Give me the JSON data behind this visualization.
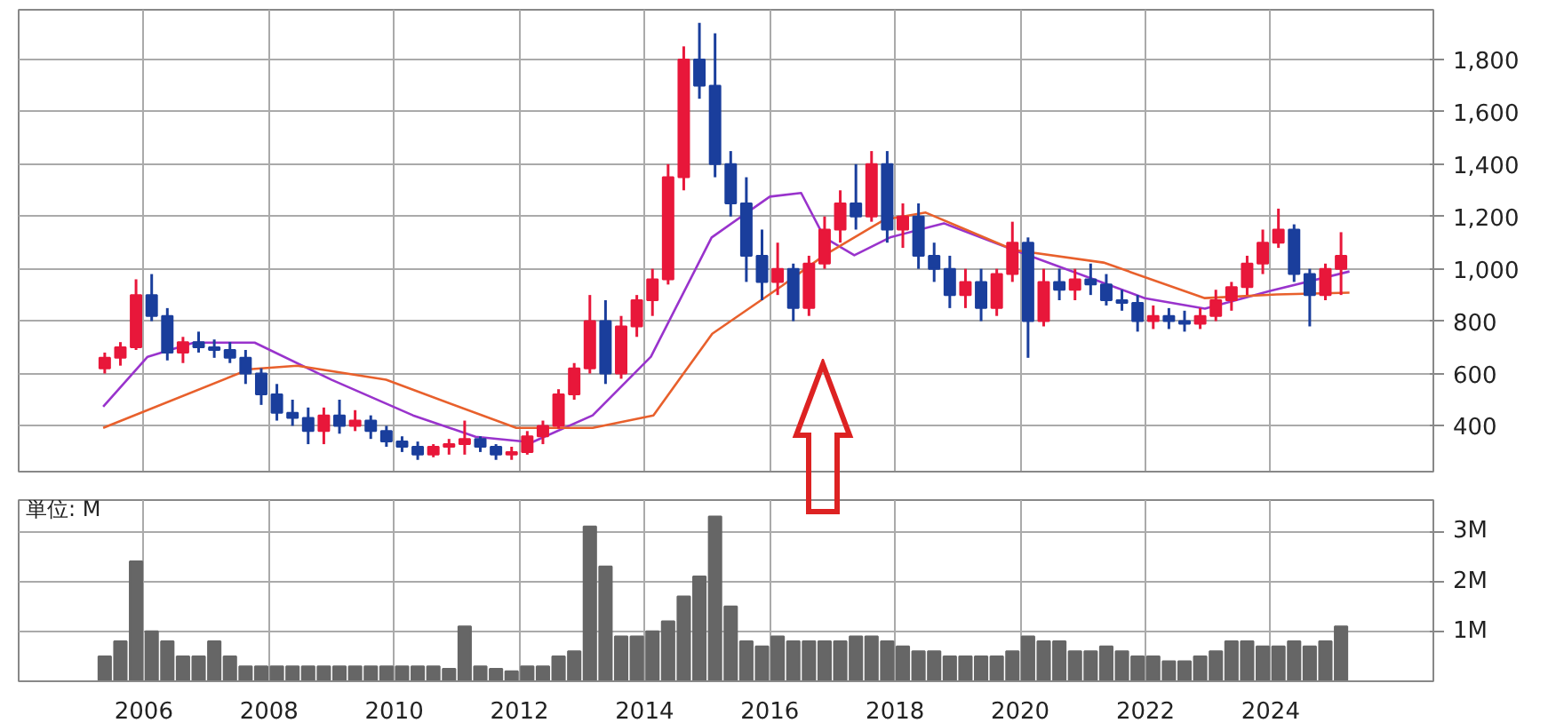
{
  "chart_data": [
    {
      "type": "candlestick",
      "x": [
        2005.375,
        2005.625,
        2005.875,
        2006.125,
        2006.375,
        2006.625,
        2006.875,
        2007.125,
        2007.375,
        2007.625,
        2007.875,
        2008.125,
        2008.375,
        2008.625,
        2008.875,
        2009.125,
        2009.375,
        2009.625,
        2009.875,
        2010.125,
        2010.375,
        2010.625,
        2010.875,
        2011.125,
        2011.375,
        2011.625,
        2011.875,
        2012.125,
        2012.375,
        2012.625,
        2012.875,
        2013.125,
        2013.375,
        2013.625,
        2013.875,
        2014.125,
        2014.375,
        2014.625,
        2014.875,
        2015.125,
        2015.375,
        2015.625,
        2015.875,
        2016.125,
        2016.375,
        2016.625,
        2016.875,
        2017.125,
        2017.375,
        2017.625,
        2017.875,
        2018.125,
        2018.375,
        2018.625,
        2018.875,
        2019.125,
        2019.375,
        2019.625,
        2019.875,
        2020.125,
        2020.375,
        2020.625,
        2020.875,
        2021.125,
        2021.375,
        2021.625,
        2021.875,
        2022.125,
        2022.375,
        2022.625,
        2022.875,
        2023.125,
        2023.375,
        2023.625,
        2023.875,
        2024.125,
        2024.375,
        2024.625,
        2024.875,
        2025.125
      ],
      "ohlc": [
        [
          620,
          680,
          600,
          660
        ],
        [
          660,
          720,
          630,
          700
        ],
        [
          700,
          960,
          690,
          900
        ],
        [
          900,
          980,
          800,
          820
        ],
        [
          820,
          850,
          650,
          680
        ],
        [
          680,
          740,
          640,
          720
        ],
        [
          720,
          760,
          680,
          700
        ],
        [
          700,
          730,
          660,
          690
        ],
        [
          690,
          720,
          640,
          660
        ],
        [
          660,
          690,
          560,
          600
        ],
        [
          600,
          620,
          480,
          520
        ],
        [
          520,
          560,
          420,
          450
        ],
        [
          450,
          500,
          400,
          430
        ],
        [
          430,
          470,
          330,
          380
        ],
        [
          380,
          470,
          330,
          440
        ],
        [
          440,
          500,
          370,
          400
        ],
        [
          400,
          460,
          380,
          420
        ],
        [
          420,
          440,
          350,
          380
        ],
        [
          380,
          400,
          320,
          340
        ],
        [
          340,
          360,
          300,
          320
        ],
        [
          320,
          340,
          270,
          290
        ],
        [
          290,
          330,
          280,
          320
        ],
        [
          320,
          350,
          290,
          330
        ],
        [
          330,
          420,
          290,
          350
        ],
        [
          350,
          360,
          300,
          320
        ],
        [
          320,
          330,
          270,
          290
        ],
        [
          290,
          320,
          270,
          300
        ],
        [
          300,
          380,
          290,
          360
        ],
        [
          360,
          420,
          330,
          400
        ],
        [
          400,
          540,
          390,
          520
        ],
        [
          520,
          640,
          500,
          620
        ],
        [
          620,
          900,
          600,
          800
        ],
        [
          800,
          880,
          560,
          600
        ],
        [
          600,
          820,
          580,
          780
        ],
        [
          780,
          900,
          740,
          880
        ],
        [
          880,
          1000,
          820,
          960
        ],
        [
          960,
          1400,
          940,
          1350
        ],
        [
          1350,
          1850,
          1300,
          1800
        ],
        [
          1800,
          1940,
          1650,
          1700
        ],
        [
          1700,
          1900,
          1350,
          1400
        ],
        [
          1400,
          1450,
          1200,
          1250
        ],
        [
          1250,
          1350,
          950,
          1050
        ],
        [
          1050,
          1150,
          880,
          950
        ],
        [
          950,
          1100,
          900,
          1000
        ],
        [
          1000,
          1020,
          800,
          850
        ],
        [
          850,
          1050,
          820,
          1020
        ],
        [
          1020,
          1200,
          1000,
          1150
        ],
        [
          1150,
          1300,
          1100,
          1250
        ],
        [
          1250,
          1400,
          1150,
          1200
        ],
        [
          1200,
          1450,
          1180,
          1400
        ],
        [
          1400,
          1450,
          1100,
          1150
        ],
        [
          1150,
          1250,
          1080,
          1200
        ],
        [
          1200,
          1250,
          1000,
          1050
        ],
        [
          1050,
          1100,
          950,
          1000
        ],
        [
          1000,
          1050,
          850,
          900
        ],
        [
          900,
          1000,
          850,
          950
        ],
        [
          950,
          1000,
          800,
          850
        ],
        [
          850,
          1000,
          820,
          980
        ],
        [
          980,
          1180,
          950,
          1100
        ],
        [
          1100,
          1120,
          660,
          800
        ],
        [
          800,
          1000,
          780,
          950
        ],
        [
          950,
          1000,
          880,
          920
        ],
        [
          920,
          1000,
          880,
          960
        ],
        [
          960,
          1020,
          900,
          940
        ],
        [
          940,
          980,
          860,
          880
        ],
        [
          880,
          920,
          840,
          870
        ],
        [
          870,
          900,
          760,
          800
        ],
        [
          800,
          860,
          770,
          820
        ],
        [
          820,
          850,
          770,
          800
        ],
        [
          800,
          840,
          760,
          790
        ],
        [
          790,
          850,
          770,
          820
        ],
        [
          820,
          920,
          800,
          880
        ],
        [
          880,
          950,
          840,
          930
        ],
        [
          930,
          1050,
          900,
          1020
        ],
        [
          1020,
          1150,
          980,
          1100
        ],
        [
          1100,
          1230,
          1080,
          1150
        ],
        [
          1150,
          1170,
          950,
          980
        ],
        [
          980,
          1000,
          780,
          900
        ],
        [
          900,
          1020,
          880,
          1000
        ],
        [
          1000,
          1140,
          900,
          1050
        ]
      ],
      "colors": [
        "#e8173a",
        "#e8173a",
        "#e8173a",
        "#1a3e9c",
        "#1a3e9c",
        "#e8173a",
        "#1a3e9c",
        "#1a3e9c",
        "#1a3e9c",
        "#1a3e9c",
        "#1a3e9c",
        "#1a3e9c",
        "#1a3e9c",
        "#1a3e9c",
        "#e8173a",
        "#1a3e9c",
        "#e8173a",
        "#1a3e9c",
        "#1a3e9c",
        "#1a3e9c",
        "#1a3e9c",
        "#e8173a",
        "#e8173a",
        "#e8173a",
        "#1a3e9c",
        "#1a3e9c",
        "#e8173a",
        "#e8173a",
        "#e8173a",
        "#e8173a",
        "#e8173a",
        "#e8173a",
        "#1a3e9c",
        "#e8173a",
        "#e8173a",
        "#e8173a",
        "#e8173a",
        "#e8173a",
        "#1a3e9c",
        "#1a3e9c",
        "#1a3e9c",
        "#1a3e9c",
        "#1a3e9c",
        "#e8173a",
        "#1a3e9c",
        "#e8173a",
        "#e8173a",
        "#e8173a",
        "#1a3e9c",
        "#e8173a",
        "#1a3e9c",
        "#e8173a",
        "#1a3e9c",
        "#1a3e9c",
        "#1a3e9c",
        "#e8173a",
        "#1a3e9c",
        "#e8173a",
        "#e8173a",
        "#1a3e9c",
        "#e8173a",
        "#1a3e9c",
        "#e8173a",
        "#1a3e9c",
        "#1a3e9c",
        "#1a3e9c",
        "#1a3e9c",
        "#e8173a",
        "#1a3e9c",
        "#1a3e9c",
        "#e8173a",
        "#e8173a",
        "#e8173a",
        "#e8173a",
        "#e8173a",
        "#e8173a",
        "#1a3e9c",
        "#1a3e9c",
        "#e8173a",
        "#e8173a"
      ],
      "series": [
        {
          "type": "line",
          "color": "#9933cc",
          "x": [
            2005.35,
            2006.06,
            2006.8,
            2007.77,
            2009.0,
            2010.3,
            2011.3,
            2012.2,
            2013.17,
            2014.1,
            2015.07,
            2016.0,
            2016.5,
            2016.87,
            2017.35,
            2017.92,
            2018.78,
            2019.9,
            2021.99,
            2022.95,
            2023.98,
            2025.26
          ],
          "values": [
            473,
            664,
            718,
            718,
            576,
            440,
            358,
            337,
            440,
            664,
            1120,
            1276,
            1290,
            1120,
            1052,
            1120,
            1174,
            1072,
            888,
            848,
            915,
            990
          ]
        },
        {
          "type": "line",
          "color": "#e8602c",
          "x": [
            2005.35,
            2007.68,
            2008.45,
            2009.87,
            2011.95,
            2013.17,
            2014.14,
            2015.08,
            2016.2,
            2016.87,
            2017.83,
            2018.49,
            2019.9,
            2021.33,
            2022.95,
            2024.1,
            2025.26
          ],
          "values": [
            392,
            616,
            630,
            576,
            392,
            392,
            440,
            752,
            936,
            1052,
            1188,
            1215,
            1072,
            1024,
            888,
            902,
            909
          ]
        }
      ],
      "xlim": [
        2004,
        2026.6
      ],
      "xticks": [
        2006,
        2008,
        2010,
        2012,
        2014,
        2016,
        2018,
        2020,
        2022,
        2024
      ],
      "ylim": [
        225,
        1990
      ],
      "yticks": [
        {
          "value": 400,
          "label": "400"
        },
        {
          "value": 600,
          "label": "600"
        },
        {
          "value": 800,
          "label": "800"
        },
        {
          "value": 1000,
          "label": "1,000"
        },
        {
          "value": 1200,
          "label": "1,200"
        },
        {
          "value": 1400,
          "label": "1,400"
        },
        {
          "value": 1600,
          "label": "1,600"
        },
        {
          "value": 1800,
          "label": "1,800"
        }
      ],
      "grid": true,
      "tick_labels": "y"
    },
    {
      "type": "bar",
      "x": [
        2005.375,
        2005.625,
        2005.875,
        2006.125,
        2006.375,
        2006.625,
        2006.875,
        2007.125,
        2007.375,
        2007.625,
        2007.875,
        2008.125,
        2008.375,
        2008.625,
        2008.875,
        2009.125,
        2009.375,
        2009.625,
        2009.875,
        2010.125,
        2010.375,
        2010.625,
        2010.875,
        2011.125,
        2011.375,
        2011.625,
        2011.875,
        2012.125,
        2012.375,
        2012.625,
        2012.875,
        2013.125,
        2013.375,
        2013.625,
        2013.875,
        2014.125,
        2014.375,
        2014.625,
        2014.875,
        2015.125,
        2015.375,
        2015.625,
        2015.875,
        2016.125,
        2016.375,
        2016.625,
        2016.875,
        2017.125,
        2017.375,
        2017.625,
        2017.875,
        2018.125,
        2018.375,
        2018.625,
        2018.875,
        2019.125,
        2019.375,
        2019.625,
        2019.875,
        2020.125,
        2020.375,
        2020.625,
        2020.875,
        2021.125,
        2021.375,
        2021.625,
        2021.875,
        2022.125,
        2022.375,
        2022.625,
        2022.875,
        2023.125,
        2023.375,
        2023.625,
        2023.875,
        2024.125,
        2024.375,
        2024.625,
        2024.875,
        2025.125
      ],
      "values": [
        0.5,
        0.8,
        2.4,
        1.0,
        0.8,
        0.5,
        0.5,
        0.8,
        0.5,
        0.3,
        0.3,
        0.3,
        0.3,
        0.3,
        0.3,
        0.3,
        0.3,
        0.3,
        0.3,
        0.3,
        0.3,
        0.3,
        0.25,
        1.1,
        0.3,
        0.25,
        0.2,
        0.3,
        0.3,
        0.5,
        0.6,
        3.1,
        2.3,
        0.9,
        0.9,
        1.0,
        1.2,
        1.7,
        2.1,
        3.3,
        1.5,
        0.8,
        0.7,
        0.9,
        0.8,
        0.8,
        0.8,
        0.8,
        0.9,
        0.9,
        0.8,
        0.7,
        0.6,
        0.6,
        0.5,
        0.5,
        0.5,
        0.5,
        0.6,
        0.9,
        0.8,
        0.8,
        0.6,
        0.6,
        0.7,
        0.6,
        0.5,
        0.5,
        0.4,
        0.4,
        0.5,
        0.6,
        0.8,
        0.8,
        0.7,
        0.7,
        0.8,
        0.7,
        0.8,
        1.1
      ],
      "color": "#666666",
      "xlim": [
        2004,
        2026.6
      ],
      "xticks": [
        2006,
        2008,
        2010,
        2012,
        2014,
        2016,
        2018,
        2020,
        2022,
        2024
      ],
      "ylim": [
        0,
        3.63
      ],
      "yticks": [
        {
          "value": 1,
          "label": "1M"
        },
        {
          "value": 2,
          "label": "2M"
        },
        {
          "value": 3,
          "label": "3M"
        }
      ],
      "grid": true,
      "annotations": [
        "単位: M"
      ]
    }
  ]
}
